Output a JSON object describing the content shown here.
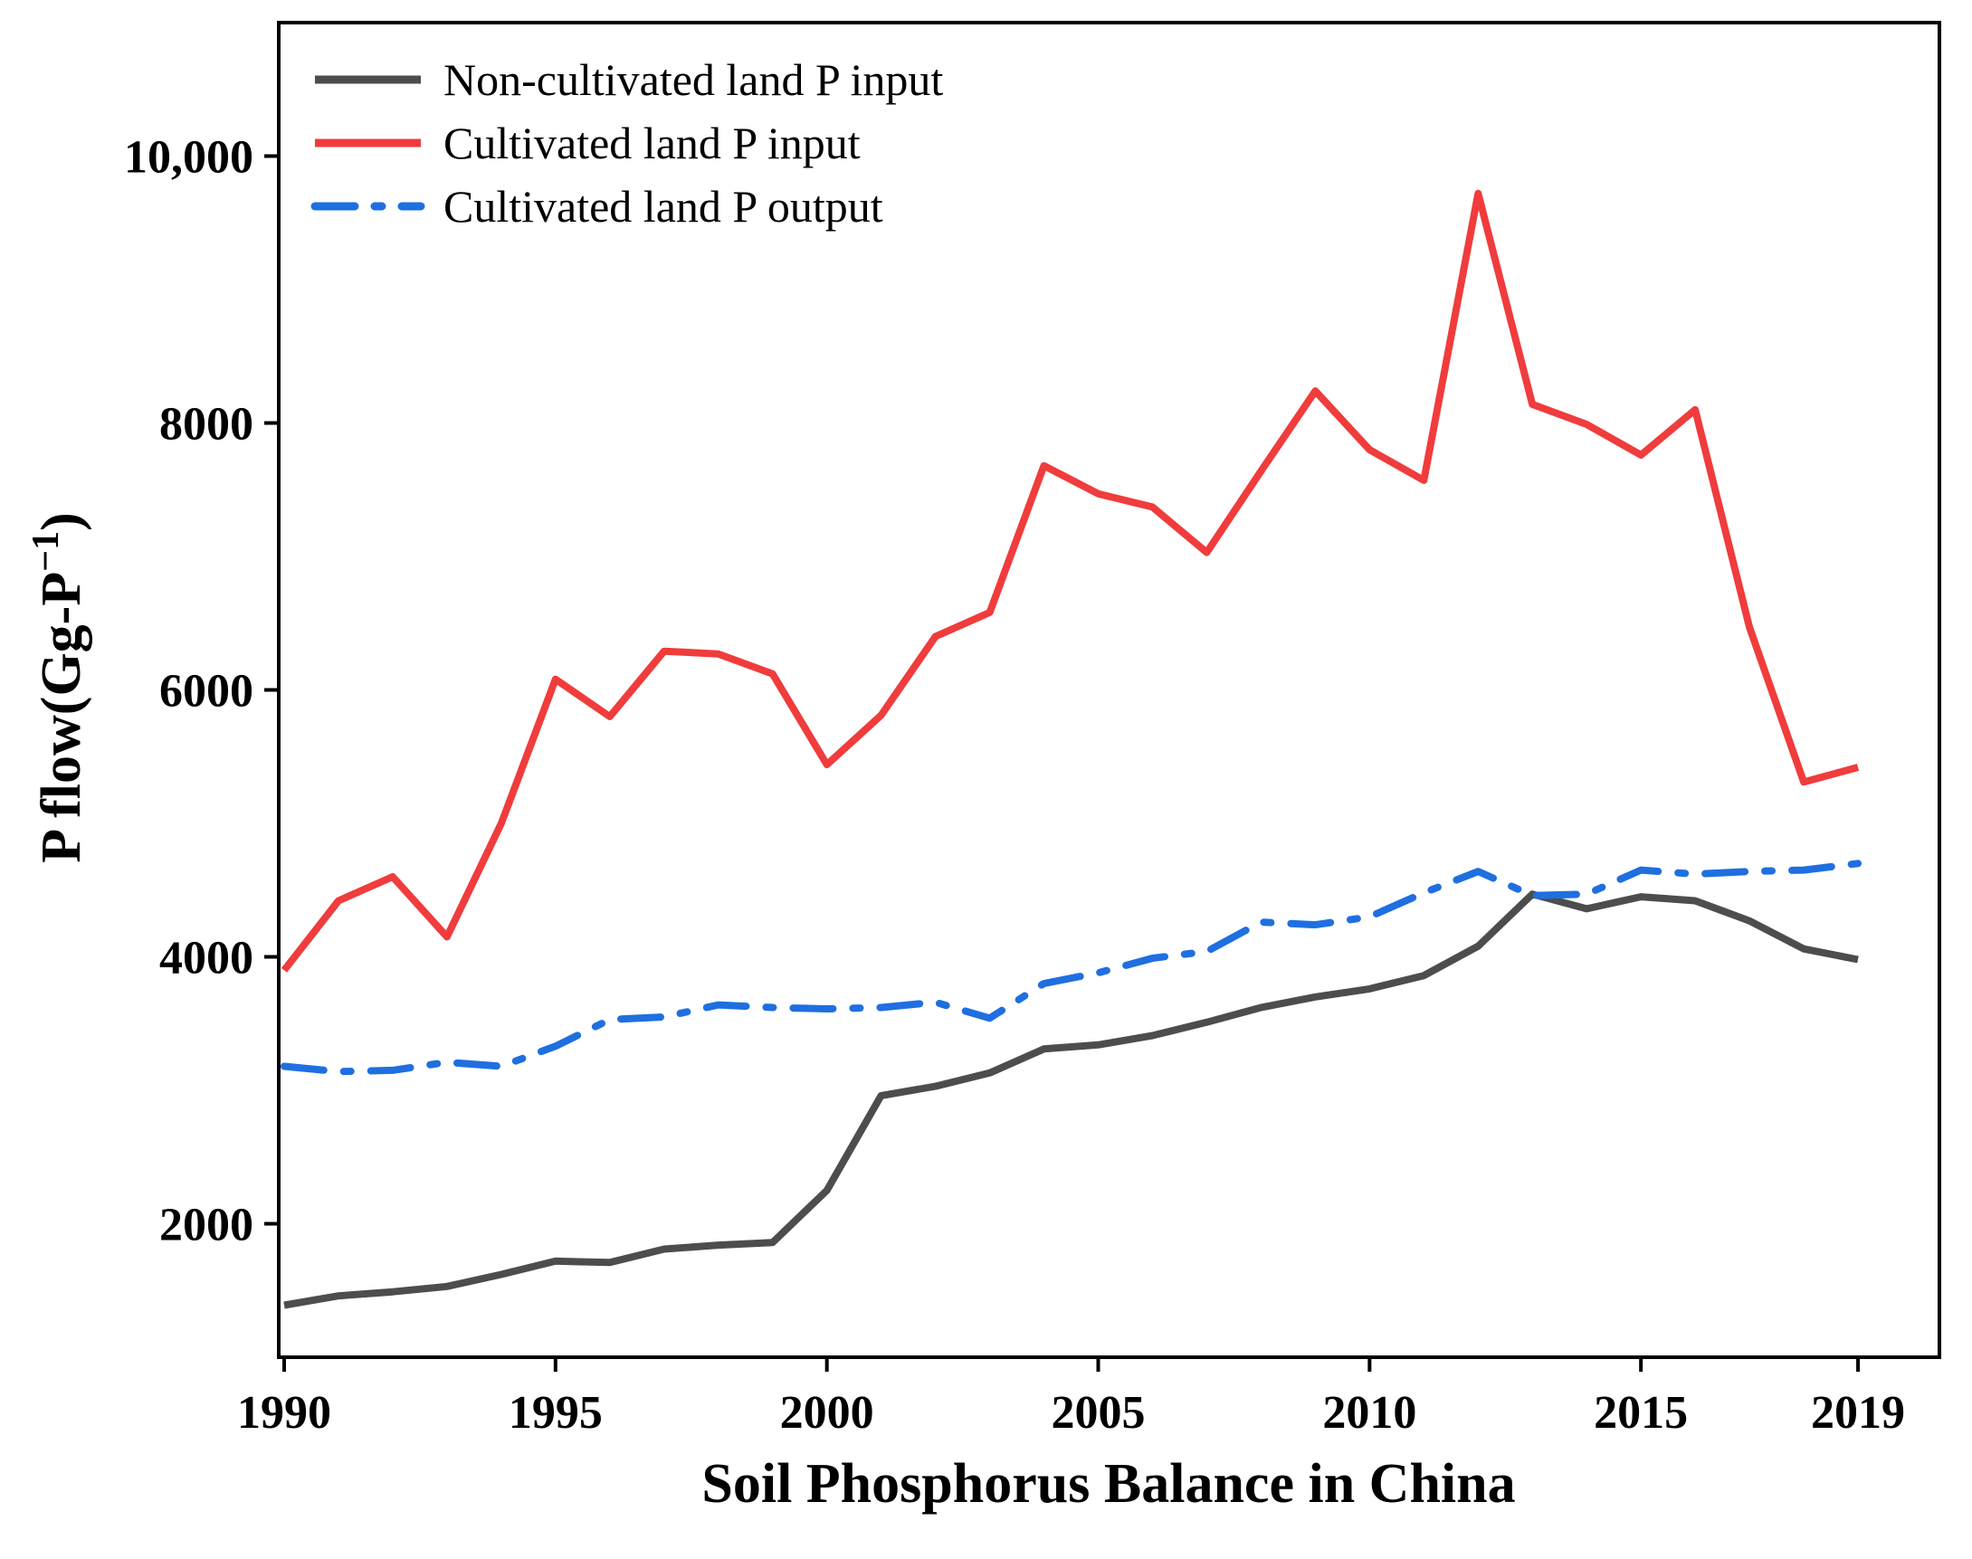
{
  "chart_data": {
    "type": "line",
    "title": "",
    "xlabel": "Soil Phosphorus Balance in China",
    "ylabel_main": "P flow(Gg-P",
    "ylabel_sup": "−1",
    "ylabel_close": ")",
    "xlim": [
      1989.9,
      2020.5
    ],
    "ylim": [
      1000,
      11000
    ],
    "x_ticks": [
      1990,
      1995,
      2000,
      2005,
      2010,
      2015,
      2019
    ],
    "x_tick_labels": [
      "1990",
      "1995",
      "2000",
      "2005",
      "2010",
      "2015",
      "2019"
    ],
    "y_ticks": [
      2000,
      4000,
      6000,
      8000,
      10000
    ],
    "y_tick_labels": [
      "2000",
      "4000",
      "6000",
      "8000",
      "10,000"
    ],
    "grid": false,
    "legend_position": "top-left",
    "x": [
      1990,
      1991,
      1992,
      1993,
      1994,
      1995,
      1996,
      1997,
      1998,
      1999,
      2000,
      2001,
      2002,
      2003,
      2004,
      2005,
      2006,
      2007,
      2008,
      2009,
      2010,
      2011,
      2012,
      2013,
      2014,
      2015,
      2016,
      2017,
      2018,
      2019
    ],
    "series": [
      {
        "name": "Non-cultivated land P input",
        "color": "#4d4d4d",
        "style": "solid",
        "values": [
          1390,
          1460,
          1490,
          1530,
          1620,
          1720,
          1710,
          1810,
          1840,
          1860,
          2250,
          2960,
          3030,
          3130,
          3310,
          3340,
          3410,
          3510,
          3620,
          3700,
          3760,
          3860,
          4080,
          4470,
          4360,
          4450,
          4420,
          4270,
          4060,
          3980
        ]
      },
      {
        "name": "Cultivated land P input",
        "color": "#f03c3c",
        "style": "solid",
        "values": [
          3900,
          4420,
          4600,
          4150,
          5000,
          6080,
          5800,
          6290,
          6270,
          6120,
          5440,
          5810,
          6400,
          6580,
          7680,
          7470,
          7370,
          7030,
          7640,
          8240,
          7800,
          7570,
          9720,
          8140,
          7990,
          7760,
          8100,
          6470,
          5310,
          5420
        ]
      },
      {
        "name": "Cultivated land P output",
        "color": "#1f6fe0",
        "style": "dash-dot",
        "values": [
          3180,
          3140,
          3150,
          3210,
          3180,
          3330,
          3530,
          3550,
          3640,
          3620,
          3610,
          3620,
          3660,
          3540,
          3800,
          3880,
          3990,
          4040,
          4260,
          4240,
          4300,
          4480,
          4640,
          4460,
          4470,
          4650,
          4620,
          4640,
          4650,
          4700
        ]
      }
    ]
  }
}
